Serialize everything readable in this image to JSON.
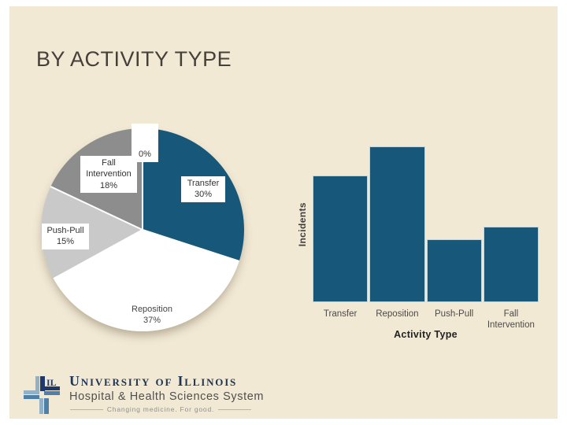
{
  "slide": {
    "title": "BY ACTIVITY TYPE"
  },
  "chart_data": [
    {
      "type": "pie",
      "title": "",
      "direction": "clockwise",
      "start_angle_deg": 0,
      "legend": "none",
      "label_style": "callout-boxes",
      "slices": [
        {
          "label": "Transfer",
          "value_pct": 30,
          "pct_text": "30%",
          "color": "#17587a"
        },
        {
          "label": "Reposition",
          "value_pct": 37,
          "pct_text": "37%",
          "color": "#ffffff"
        },
        {
          "label": "Push-Pull",
          "value_pct": 15,
          "pct_text": "15%",
          "color": "#c9c9c9"
        },
        {
          "label": "Fall Intervention",
          "value_pct": 18,
          "pct_text": "18%",
          "color": "#8d8d8d"
        },
        {
          "label": "",
          "value_pct": 0,
          "pct_text": "0%",
          "color": "#ffffff"
        }
      ]
    },
    {
      "type": "bar",
      "categories": [
        "Transfer",
        "Reposition",
        "Push-Pull",
        "Fall Intervention"
      ],
      "values": [
        30,
        37,
        15,
        18
      ],
      "xlabel": "Activity Type",
      "ylabel": "Incidents",
      "bar_color": "#17587a",
      "ylim": [
        0,
        37
      ],
      "grid": false,
      "y_tick_labels": "none",
      "legend": "none"
    }
  ],
  "footer": {
    "org_name": "University of Illinois",
    "org_subtitle": "Hospital & Health Sciences System",
    "tagline": "Changing medicine. For good."
  },
  "colors": {
    "slide_background": "#f2e9d5",
    "accent_teal": "#17587a",
    "logo_navy": "#1e3a6d",
    "logo_steel": "#4f7ea8",
    "logo_light": "#93b1c4"
  }
}
